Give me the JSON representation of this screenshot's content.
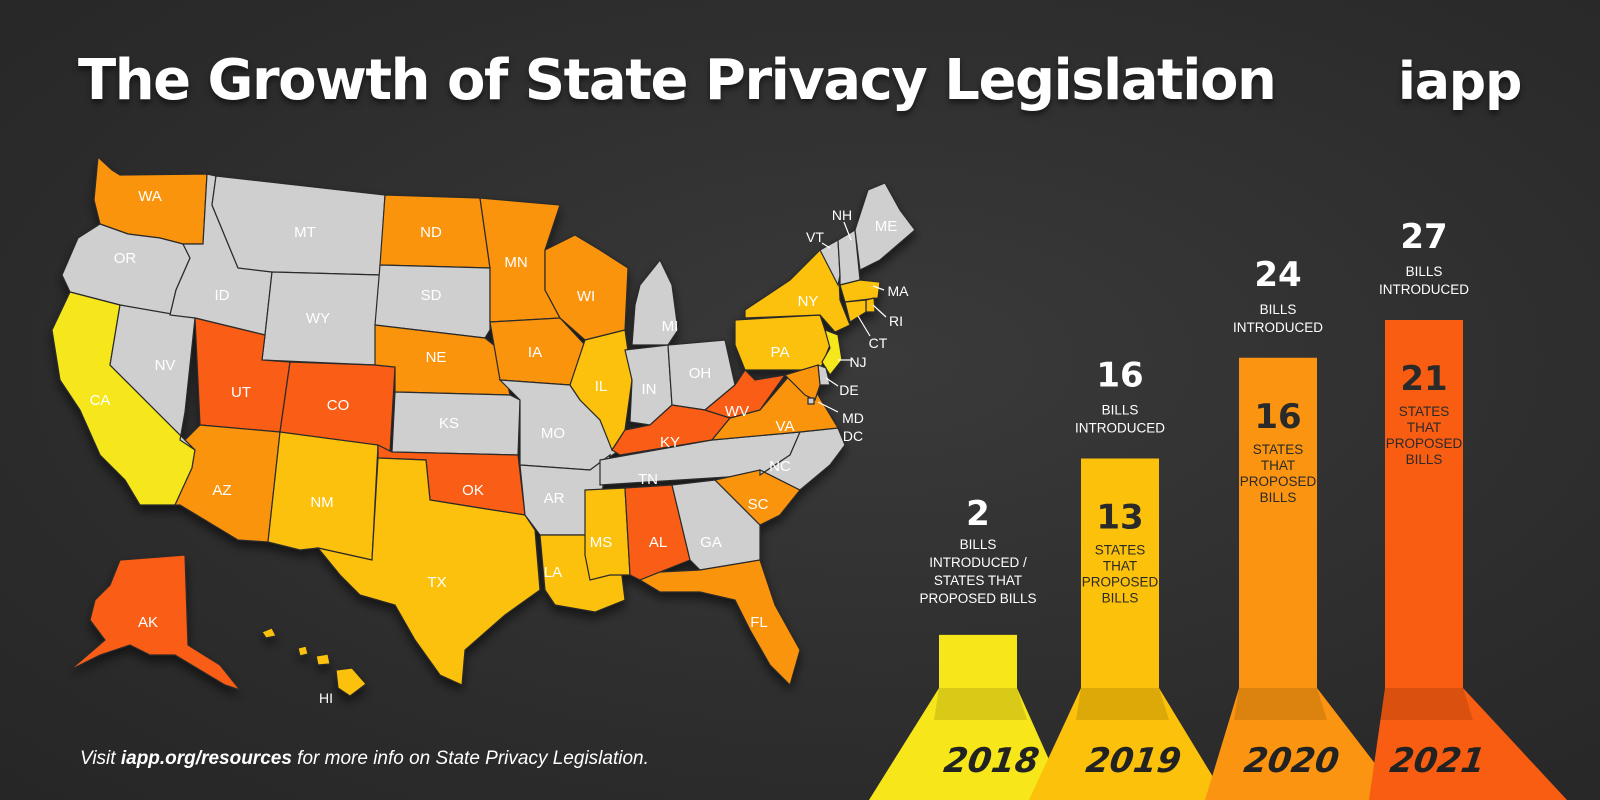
{
  "title": "The Growth of State Privacy Legislation",
  "logo": "iapp",
  "footer": {
    "prefix": "Visit ",
    "link": "iapp.org/resources",
    "suffix": " for more info on State Privacy Legislation."
  },
  "colors": {
    "background": "#2b2b2b",
    "none": "#cfcfcf",
    "y2018": "#f6e61a",
    "y2019": "#fcc10a",
    "y2020": "#fb9410",
    "y2021": "#f95d12"
  },
  "map_states": [
    {
      "abbr": "WA",
      "year": 2020
    },
    {
      "abbr": "OR",
      "year": null
    },
    {
      "abbr": "CA",
      "year": 2018
    },
    {
      "abbr": "NV",
      "year": null
    },
    {
      "abbr": "ID",
      "year": null
    },
    {
      "abbr": "MT",
      "year": null
    },
    {
      "abbr": "WY",
      "year": null
    },
    {
      "abbr": "UT",
      "year": 2021
    },
    {
      "abbr": "CO",
      "year": 2021
    },
    {
      "abbr": "AZ",
      "year": 2020
    },
    {
      "abbr": "NM",
      "year": 2019
    },
    {
      "abbr": "ND",
      "year": 2020
    },
    {
      "abbr": "SD",
      "year": null
    },
    {
      "abbr": "NE",
      "year": 2020
    },
    {
      "abbr": "KS",
      "year": null
    },
    {
      "abbr": "OK",
      "year": 2021
    },
    {
      "abbr": "TX",
      "year": 2019
    },
    {
      "abbr": "MN",
      "year": 2020
    },
    {
      "abbr": "IA",
      "year": 2020
    },
    {
      "abbr": "MO",
      "year": null
    },
    {
      "abbr": "AR",
      "year": null
    },
    {
      "abbr": "LA",
      "year": 2019
    },
    {
      "abbr": "WI",
      "year": 2020
    },
    {
      "abbr": "IL",
      "year": 2019
    },
    {
      "abbr": "MI",
      "year": null
    },
    {
      "abbr": "IN",
      "year": null
    },
    {
      "abbr": "OH",
      "year": null
    },
    {
      "abbr": "KY",
      "year": 2021
    },
    {
      "abbr": "TN",
      "year": null
    },
    {
      "abbr": "MS",
      "year": 2019
    },
    {
      "abbr": "AL",
      "year": 2021
    },
    {
      "abbr": "GA",
      "year": null
    },
    {
      "abbr": "FL",
      "year": 2020
    },
    {
      "abbr": "SC",
      "year": 2020
    },
    {
      "abbr": "NC",
      "year": null
    },
    {
      "abbr": "VA",
      "year": 2020
    },
    {
      "abbr": "WV",
      "year": 2021
    },
    {
      "abbr": "PA",
      "year": 2019
    },
    {
      "abbr": "NY",
      "year": 2019
    },
    {
      "abbr": "VT",
      "year": null
    },
    {
      "abbr": "NH",
      "year": null
    },
    {
      "abbr": "ME",
      "year": null
    },
    {
      "abbr": "MA",
      "year": 2019
    },
    {
      "abbr": "RI",
      "year": 2019
    },
    {
      "abbr": "CT",
      "year": 2019
    },
    {
      "abbr": "NJ",
      "year": 2018
    },
    {
      "abbr": "DE",
      "year": null
    },
    {
      "abbr": "MD",
      "year": 2020
    },
    {
      "abbr": "DC",
      "year": null
    },
    {
      "abbr": "AK",
      "year": 2021
    },
    {
      "abbr": "HI",
      "year": 2019
    }
  ],
  "chart_data": {
    "type": "bar",
    "categories": [
      "2018",
      "2019",
      "2020",
      "2021"
    ],
    "series": [
      {
        "name": "BILLS INTRODUCED",
        "values": [
          2,
          16,
          24,
          27
        ]
      },
      {
        "name": "STATES THAT PROPOSED BILLS",
        "values": [
          2,
          13,
          16,
          21
        ]
      }
    ],
    "bar_colors": [
      "#f6e61a",
      "#fcc10a",
      "#fb9410",
      "#f95d12"
    ],
    "labels": {
      "bills_line1": "BILLS",
      "bills_line2": "INTRODUCED",
      "combined_line1": "BILLS",
      "combined_line2": "INTRODUCED /",
      "combined_line3": "STATES THAT",
      "combined_line4": "PROPOSED BILLS",
      "states_line1": "STATES",
      "states_line2": "THAT",
      "states_line3": "PROPOSED",
      "states_line4": "BILLS"
    },
    "ylim": [
      0,
      27
    ]
  }
}
